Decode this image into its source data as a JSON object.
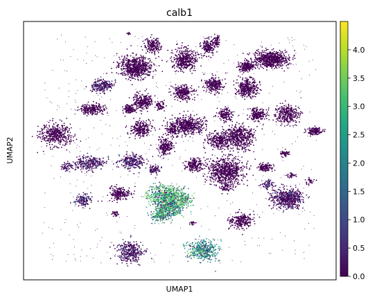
{
  "chart_data": {
    "type": "scatter",
    "title": "calb1",
    "xlabel": "UMAP1",
    "ylabel": "UMAP2",
    "colorbar": {
      "colormap": "viridis",
      "range": [
        0.0,
        4.5
      ],
      "ticks": [
        "0.0",
        "0.5",
        "1.0",
        "1.5",
        "2.0",
        "2.5",
        "3.0",
        "3.5",
        "4.0"
      ]
    },
    "grid": false,
    "legend": "colorbar-right"
  }
}
